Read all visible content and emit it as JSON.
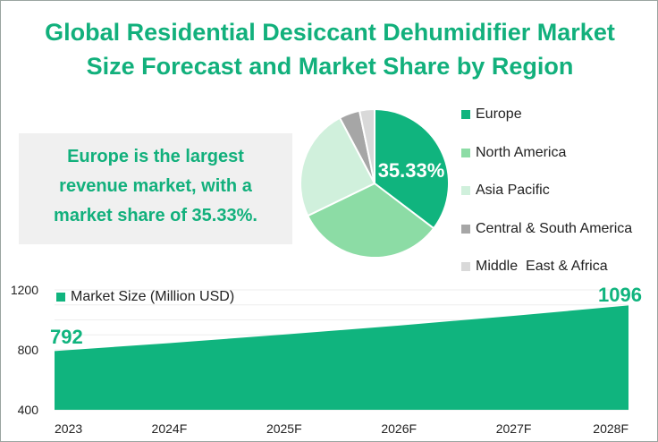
{
  "title_line1": "Global Residential Desiccant Dehumidifier Market",
  "title_line2": "Size Forecast and Market Share by Region",
  "callout": [
    "Europe is the largest",
    "revenue market, with a",
    "market share of 35.33%."
  ],
  "chart_data": [
    {
      "type": "pie",
      "title": "Market Share by Region",
      "categories": [
        "Europe",
        "North America",
        "Asia Pacific",
        "Central & South America",
        "Middle  East & Africa"
      ],
      "values": [
        35.33,
        32.5,
        24.4,
        4.5,
        3.27
      ],
      "colors": [
        "#10b47e",
        "#8cdca5",
        "#d0f0dc",
        "#a6a6a6",
        "#d9d9d9"
      ],
      "data_label": "35.33%",
      "legend": "right"
    },
    {
      "type": "area",
      "series_name": "Market Size (Million USD)",
      "categories": [
        "2023",
        "2024F",
        "2025F",
        "2026F",
        "2027F",
        "2028F"
      ],
      "values": [
        792,
        845,
        902,
        962,
        1027,
        1096
      ],
      "data_labels": {
        "first": "792",
        "last": "1096"
      },
      "yticks": [
        "400",
        "800",
        "1200"
      ],
      "ylim": [
        400,
        1200
      ],
      "color": "#10b47e",
      "legend": "top-left"
    }
  ]
}
